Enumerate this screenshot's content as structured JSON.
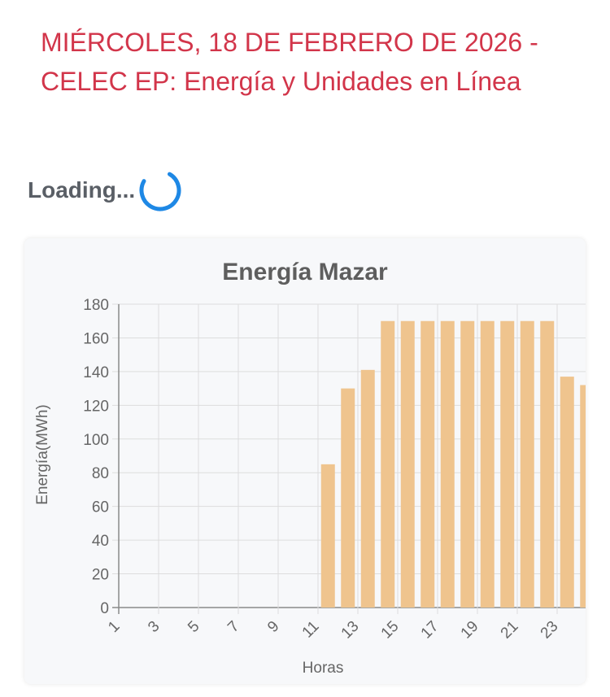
{
  "page": {
    "title": "MIÉRCOLES, 18 DE FEBRERO DE 2026 - CELEC EP: Energía y Unidades en Línea"
  },
  "loading": {
    "text": "Loading...",
    "icon": "spinner-icon",
    "spinner_color": "#1e88e5"
  },
  "chart_data": {
    "type": "bar",
    "title": "Energía Mazar",
    "xlabel": "Horas",
    "ylabel": "Energía(MWh)",
    "categories": [
      1,
      2,
      3,
      4,
      5,
      6,
      7,
      8,
      9,
      10,
      11,
      12,
      13,
      14,
      15,
      16,
      17,
      18,
      19,
      20,
      21,
      22,
      23,
      24
    ],
    "x_tick_labels": [
      "1",
      "3",
      "5",
      "7",
      "9",
      "11",
      "13",
      "15",
      "17",
      "19",
      "21",
      "23"
    ],
    "values": [
      0,
      0,
      0,
      0,
      0,
      0,
      0,
      0,
      0,
      0,
      85,
      130,
      141,
      170,
      170,
      170,
      170,
      170,
      170,
      170,
      170,
      170,
      137,
      132
    ],
    "ylim": [
      0,
      180
    ],
    "y_ticks": [
      0,
      20,
      40,
      60,
      80,
      100,
      120,
      140,
      160,
      180
    ],
    "grid": true,
    "bar_color": "#efc48e"
  }
}
